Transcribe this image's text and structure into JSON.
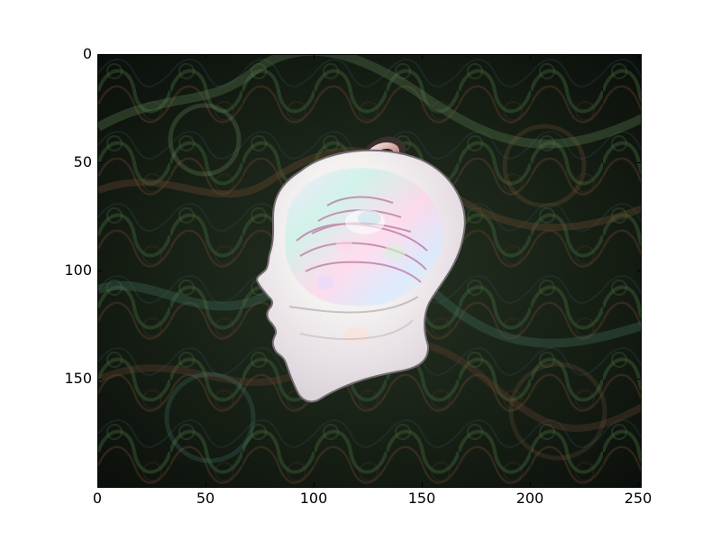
{
  "plot": {
    "x_ticks": [
      "0",
      "50",
      "100",
      "150",
      "200",
      "250"
    ],
    "y_ticks": [
      "0",
      "50",
      "100",
      "150"
    ]
  },
  "image": {
    "subject": "head-profile-pendant-icon"
  },
  "colors": {
    "background": "#ffffff",
    "image_dark": "#111611",
    "pendant_light": "#f2f0ee"
  }
}
